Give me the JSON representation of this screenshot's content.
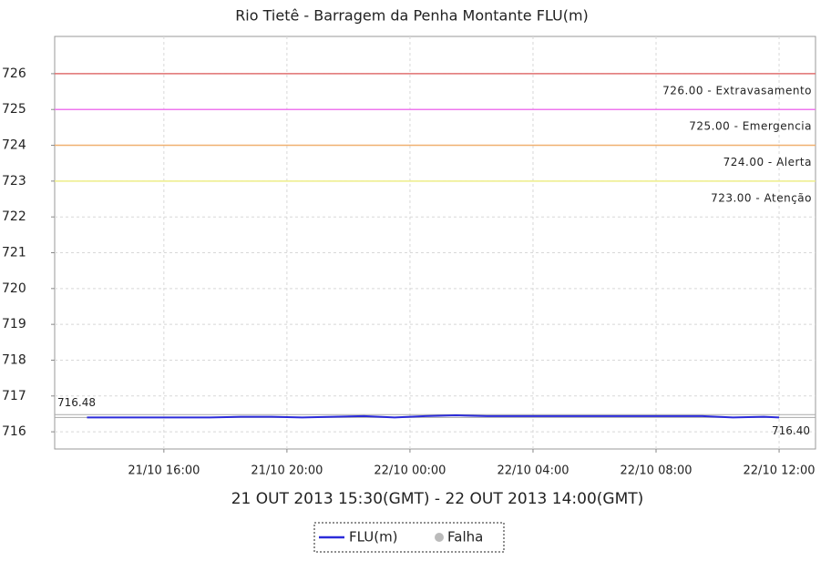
{
  "chart_data": {
    "type": "line",
    "title": "Rio Tietê - Barragem da Penha Montante FLU(m)",
    "xlabel": "21 OUT 2013 15:30(GMT) - 22 OUT 2013 14:00(GMT)",
    "x": [
      "21/10 13:30",
      "21/10 14:30",
      "21/10 15:30",
      "21/10 16:30",
      "21/10 17:30",
      "21/10 18:30",
      "21/10 19:30",
      "21/10 20:30",
      "21/10 21:30",
      "21/10 22:30",
      "21/10 23:30",
      "22/10 00:30",
      "22/10 01:30",
      "22/10 02:30",
      "22/10 03:30",
      "22/10 04:30",
      "22/10 05:30",
      "22/10 06:30",
      "22/10 07:30",
      "22/10 08:30",
      "22/10 09:30",
      "22/10 10:30",
      "22/10 11:30",
      "22/10 12:00"
    ],
    "series": [
      {
        "name": "FLU(m)",
        "color": "#2b2bd9",
        "values": [
          716.4,
          716.4,
          716.4,
          716.4,
          716.4,
          716.42,
          716.42,
          716.4,
          716.42,
          716.44,
          716.4,
          716.44,
          716.46,
          716.44,
          716.44,
          716.44,
          716.44,
          716.44,
          716.44,
          716.44,
          716.44,
          716.4,
          716.42,
          716.4
        ]
      }
    ],
    "extra_legend": {
      "name": "Falha",
      "color": "#bbbbbb"
    },
    "thresholds": [
      {
        "value": 726,
        "label": "726.00 - Extravasamento",
        "color": "#e07070"
      },
      {
        "value": 725,
        "label": "725.00 - Emergencia",
        "color": "#ee77ee"
      },
      {
        "value": 724,
        "label": "724.00 - Alerta",
        "color": "#f0b070"
      },
      {
        "value": 723,
        "label": "723.00 - Atenção",
        "color": "#eeee88"
      }
    ],
    "annotations": [
      {
        "value": 716.48,
        "label": "716.48"
      },
      {
        "value": 716.4,
        "label": "716.40"
      }
    ],
    "xlim": [
      "21/10 12:27",
      "22/10 13:11"
    ],
    "xticks": [
      "21/10 16:00",
      "21/10 20:00",
      "22/10 00:00",
      "22/10 04:00",
      "22/10 08:00",
      "22/10 12:00"
    ],
    "ylim": [
      715.52,
      727.04
    ],
    "yticks": [
      716,
      717,
      718,
      719,
      720,
      721,
      722,
      723,
      724,
      725,
      726
    ],
    "grid": true
  }
}
